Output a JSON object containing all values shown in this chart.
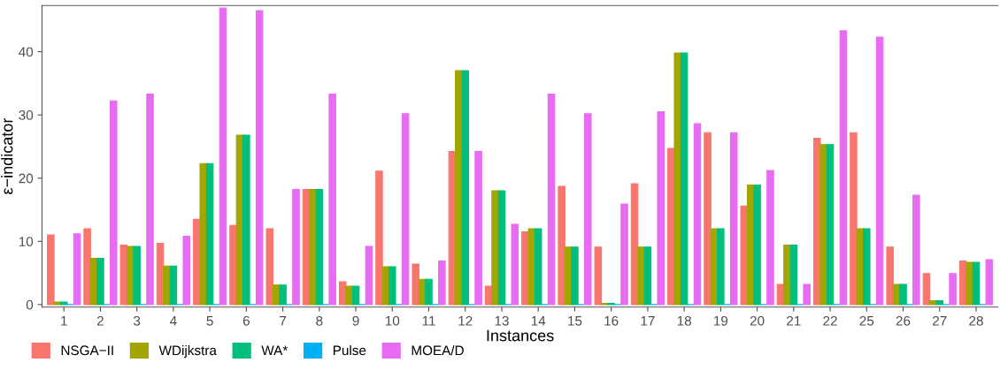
{
  "chart_data": {
    "type": "bar",
    "xlabel": "Instances",
    "ylabel": "ε−indicator",
    "categories": [
      "1",
      "2",
      "3",
      "4",
      "5",
      "6",
      "7",
      "8",
      "9",
      "10",
      "11",
      "12",
      "13",
      "14",
      "15",
      "16",
      "17",
      "18",
      "19",
      "20",
      "21",
      "22",
      "25",
      "26",
      "27",
      "28"
    ],
    "series": [
      {
        "name": "NSGA−II",
        "color": "#f8766d",
        "values": [
          11.0,
          12.0,
          9.4,
          9.7,
          13.5,
          12.5,
          12.0,
          18.2,
          3.6,
          21.1,
          6.4,
          24.2,
          2.9,
          11.5,
          18.7,
          9.1,
          19.1,
          24.7,
          27.2,
          15.6,
          3.2,
          26.3,
          27.2,
          9.1,
          4.9,
          6.9
        ]
      },
      {
        "name": "WDijkstra",
        "color": "#a3a500",
        "values": [
          0.4,
          7.3,
          9.2,
          6.1,
          22.3,
          26.8,
          3.1,
          18.2,
          2.9,
          6.0,
          4.0,
          37.0,
          18.0,
          12.0,
          9.1,
          0.2,
          9.1,
          39.8,
          12.0,
          18.9,
          9.4,
          25.3,
          12.0,
          3.2,
          0.6,
          6.7
        ]
      },
      {
        "name": "WA*",
        "color": "#00bf7d",
        "values": [
          0.4,
          7.3,
          9.2,
          6.1,
          22.3,
          26.8,
          3.1,
          18.2,
          2.9,
          6.0,
          4.0,
          37.0,
          18.0,
          12.0,
          9.1,
          0.2,
          9.1,
          39.8,
          12.0,
          18.9,
          9.4,
          25.3,
          12.0,
          3.2,
          0.6,
          6.7
        ]
      },
      {
        "name": "Pulse",
        "color": "#00b0f6",
        "values": [
          0,
          0,
          0,
          0,
          0,
          0,
          0,
          0,
          0,
          0,
          0,
          0,
          0,
          0,
          0,
          0,
          0,
          0,
          0,
          0,
          0,
          0,
          0,
          0,
          0,
          0
        ]
      },
      {
        "name": "MOEA/D",
        "color": "#e76bf3",
        "values": [
          11.2,
          32.2,
          33.3,
          10.8,
          46.9,
          46.5,
          18.2,
          33.3,
          9.2,
          30.2,
          6.9,
          24.2,
          12.7,
          33.3,
          30.2,
          15.9,
          30.5,
          28.6,
          27.2,
          21.2,
          3.2,
          43.3,
          42.3,
          17.3,
          4.9,
          7.1
        ]
      }
    ],
    "ylim": [
      -0.4,
      47.3
    ],
    "yticks": [
      0,
      10,
      20,
      30,
      40
    ],
    "grid": false,
    "legend": "bottom left"
  }
}
